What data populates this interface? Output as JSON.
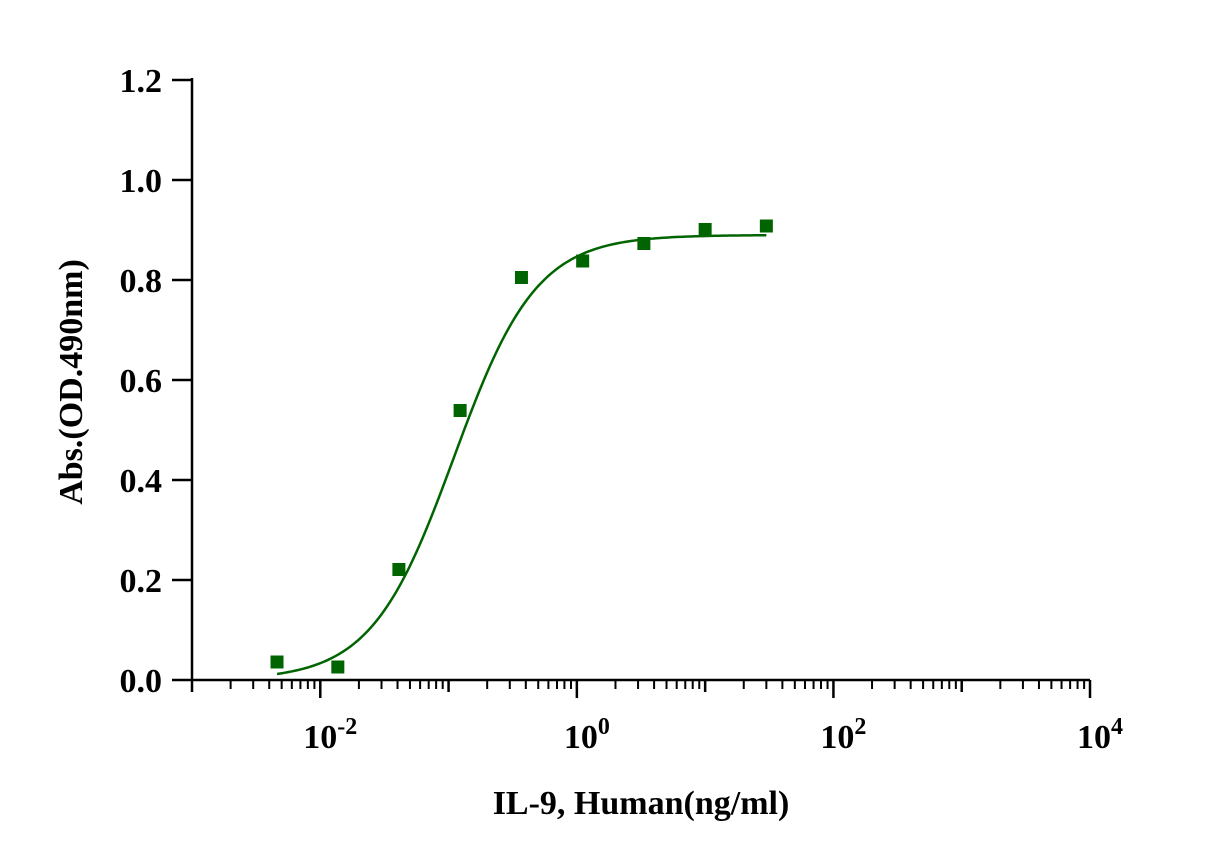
{
  "chart_data": {
    "type": "scatter",
    "title": "",
    "xlabel": "IL-9, Human(ng/ml)",
    "ylabel": "Abs.(OD.490nm)",
    "xscale": "log",
    "xlim": [
      0.001,
      10000
    ],
    "ylim": [
      0,
      1.2
    ],
    "x_ticks": [
      {
        "value": 0.01,
        "base": "10",
        "exp": "-2"
      },
      {
        "value": 1,
        "base": "10",
        "exp": "0"
      },
      {
        "value": 100,
        "base": "10",
        "exp": "2"
      },
      {
        "value": 10000,
        "base": "10",
        "exp": "4"
      }
    ],
    "y_ticks": [
      {
        "value": 0.0,
        "label": "0.0"
      },
      {
        "value": 0.2,
        "label": "0.2"
      },
      {
        "value": 0.4,
        "label": "0.4"
      },
      {
        "value": 0.6,
        "label": "0.6"
      },
      {
        "value": 0.8,
        "label": "0.8"
      },
      {
        "value": 1.0,
        "label": "1.0"
      },
      {
        "value": 1.2,
        "label": "1.2"
      }
    ],
    "grid": false,
    "series": [
      {
        "name": "IL-9, Human",
        "color": "#006400",
        "marker": "square",
        "x": [
          0.0046,
          0.0137,
          0.041,
          0.123,
          0.37,
          1.11,
          3.33,
          10.0,
          30.0
        ],
        "y": [
          0.036,
          0.026,
          0.221,
          0.539,
          0.805,
          0.838,
          0.873,
          0.901,
          0.908
        ],
        "fit": {
          "model": "4PL",
          "bottom": 0.0,
          "top": 0.89,
          "ec50": 0.11,
          "hill": 1.35,
          "x_range": [
            0.0046,
            30.0
          ]
        }
      }
    ]
  }
}
